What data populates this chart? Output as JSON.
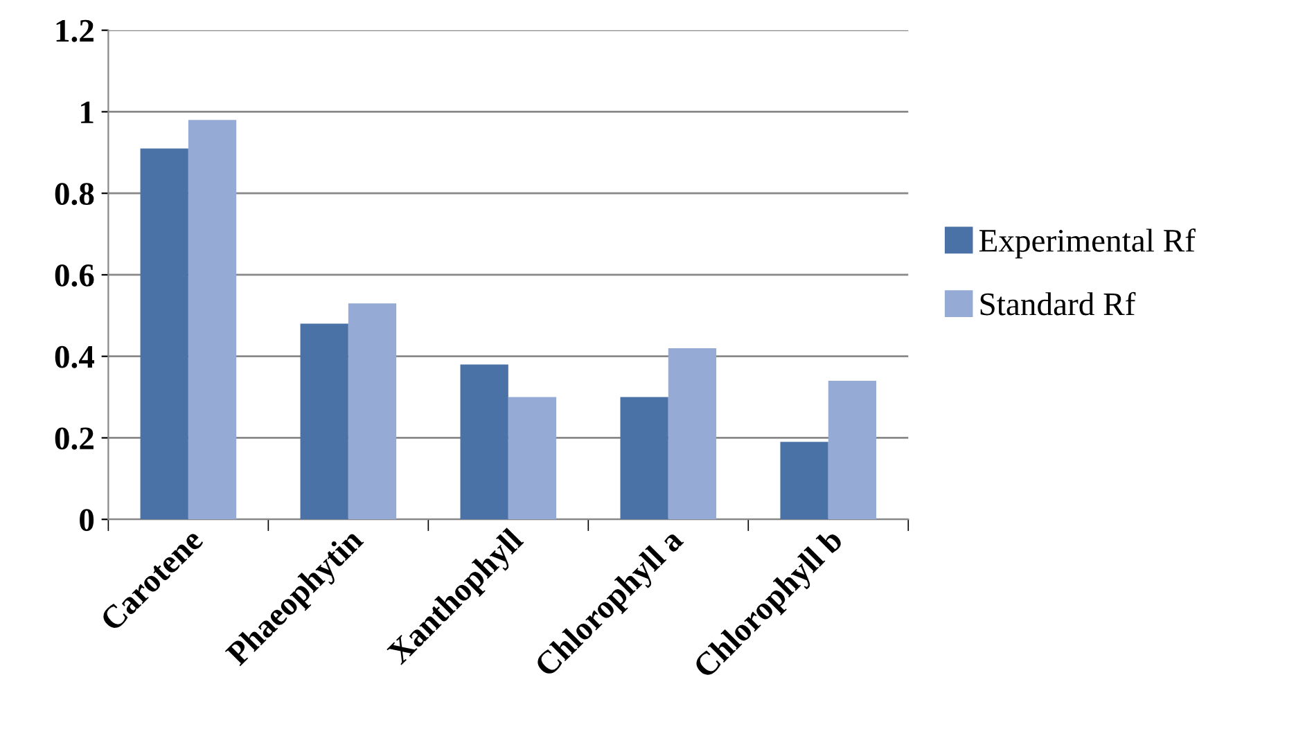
{
  "chart_data": {
    "type": "bar",
    "categories": [
      "Carotene",
      "Phaeophytin",
      "Xanthophyll",
      "Chlorophyll a",
      "Chlorophyll b"
    ],
    "series": [
      {
        "name": "Experimental Rf",
        "color": "#4a72a6",
        "values": [
          0.91,
          0.48,
          0.38,
          0.3,
          0.19
        ]
      },
      {
        "name": "Standard Rf",
        "color": "#95abd5",
        "values": [
          0.98,
          0.53,
          0.3,
          0.42,
          0.34
        ]
      }
    ],
    "ylim": [
      0,
      1.2
    ],
    "yticks": [
      0,
      0.2,
      0.4,
      0.6,
      0.8,
      1,
      1.2
    ],
    "grid": "y",
    "legend": "right"
  }
}
